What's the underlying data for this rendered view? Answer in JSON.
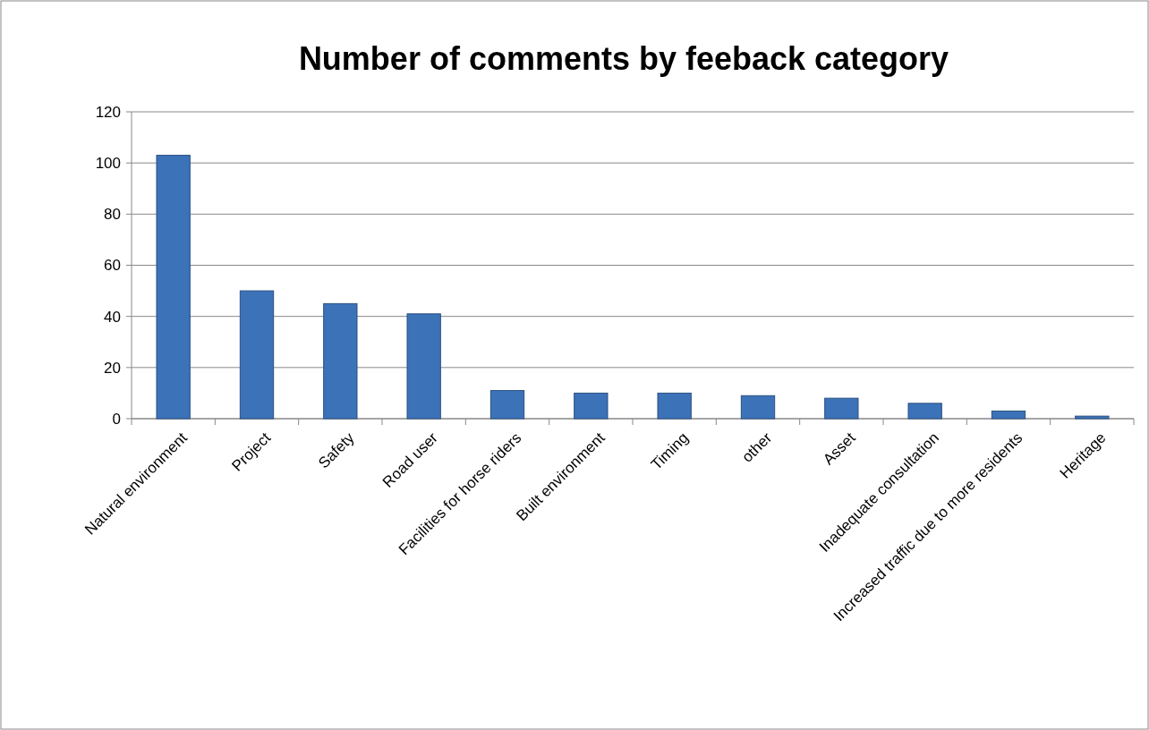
{
  "chart_data": {
    "type": "bar",
    "title": "Number of comments by feeback category",
    "categories": [
      "Natural environment",
      "Project",
      "Safety",
      "Road user",
      "Facilities for horse riders",
      "Built environment",
      "Timing",
      "other",
      "Asset",
      "Inadequate consultation",
      "Increased traffic due to more residents",
      "Heritage"
    ],
    "values": [
      103,
      50,
      45,
      41,
      11,
      10,
      10,
      9,
      8,
      6,
      3,
      1
    ],
    "color": "#3c72b8",
    "ylim": [
      0,
      120
    ],
    "yticks": [
      0,
      20,
      40,
      60,
      80,
      100,
      120
    ],
    "grid": "y"
  }
}
